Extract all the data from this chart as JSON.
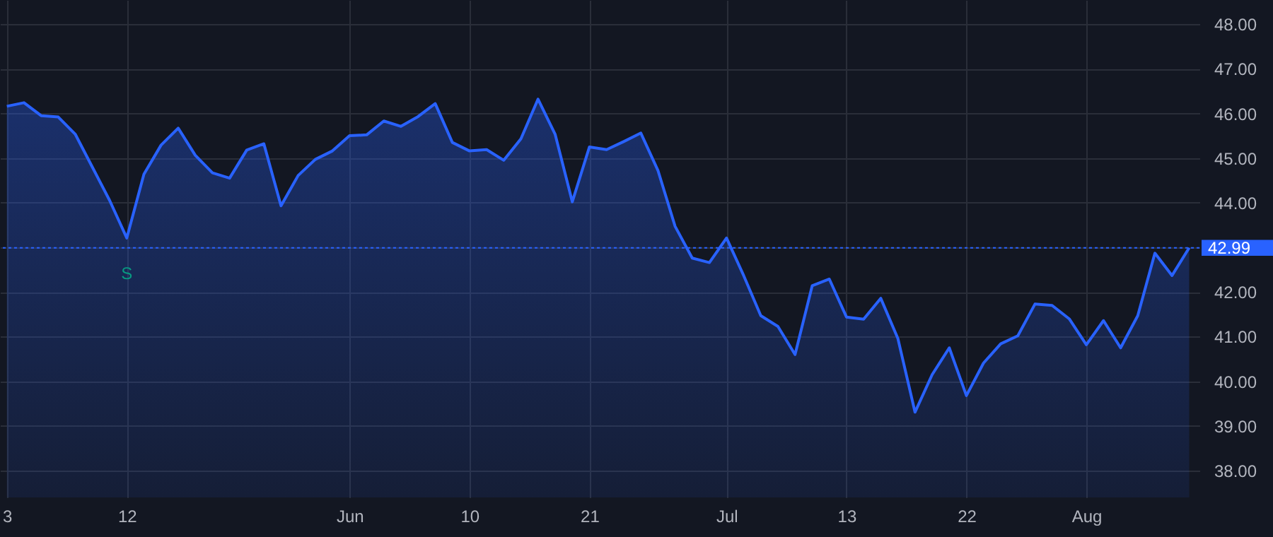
{
  "chart_data": {
    "type": "area",
    "categories": [
      "3",
      null,
      null,
      null,
      null,
      null,
      null,
      "12",
      null,
      null,
      null,
      null,
      null,
      null,
      null,
      null,
      null,
      null,
      null,
      null,
      "Jun",
      null,
      null,
      null,
      null,
      null,
      null,
      "10",
      null,
      null,
      null,
      null,
      null,
      null,
      "21",
      null,
      null,
      null,
      null,
      null,
      null,
      null,
      "Jul",
      null,
      null,
      null,
      null,
      null,
      null,
      "13",
      null,
      null,
      null,
      null,
      null,
      null,
      "22",
      null,
      null,
      null,
      null,
      null,
      null,
      "Aug",
      null,
      null,
      null,
      null,
      null,
      null
    ],
    "series": [
      {
        "color": "#2962ff",
        "values": [
          46.16,
          46.24,
          45.95,
          45.92,
          45.53,
          44.79,
          44.05,
          43.21,
          44.64,
          45.29,
          45.67,
          45.06,
          44.67,
          44.55,
          45.18,
          45.32,
          43.93,
          44.61,
          44.97,
          45.16,
          45.5,
          45.52,
          45.83,
          45.71,
          45.93,
          46.22,
          45.35,
          45.16,
          45.19,
          44.95,
          45.43,
          46.32,
          45.53,
          44.02,
          45.25,
          45.19,
          45.37,
          45.56,
          44.72,
          43.47,
          42.76,
          42.66,
          43.21,
          42.37,
          41.47,
          41.23,
          40.6,
          42.14,
          42.29,
          41.44,
          41.39,
          41.86,
          40.96,
          39.31,
          40.15,
          40.75,
          39.68,
          40.41,
          40.84,
          41.02,
          41.73,
          41.7,
          41.4,
          40.82,
          41.36,
          40.75,
          41.47,
          42.87,
          42.37,
          42.99
        ]
      }
    ],
    "ylim": [
      37.4,
      48.54
    ],
    "yticks": [
      {
        "value": 38,
        "label": "38.00"
      },
      {
        "value": 39,
        "label": "39.00"
      },
      {
        "value": 40,
        "label": "40.00"
      },
      {
        "value": 41,
        "label": "41.00"
      },
      {
        "value": 42,
        "label": "42.00"
      },
      {
        "value": 43,
        "label": null
      },
      {
        "value": 44,
        "label": "44.00"
      },
      {
        "value": 45,
        "label": "45.00"
      },
      {
        "value": 46,
        "label": "46.00"
      },
      {
        "value": 47,
        "label": "47.00"
      },
      {
        "value": 48,
        "label": "48.00"
      }
    ],
    "ref_lines": [
      {
        "axis": "y",
        "value": 42.99,
        "label": "42.99",
        "color": "#2962ff",
        "line_style": "dotted"
      }
    ],
    "annotations": [
      {
        "text": "S",
        "x": "12",
        "y": 43.21
      }
    ],
    "grid": true,
    "marker": "none",
    "line_style": "solid"
  }
}
